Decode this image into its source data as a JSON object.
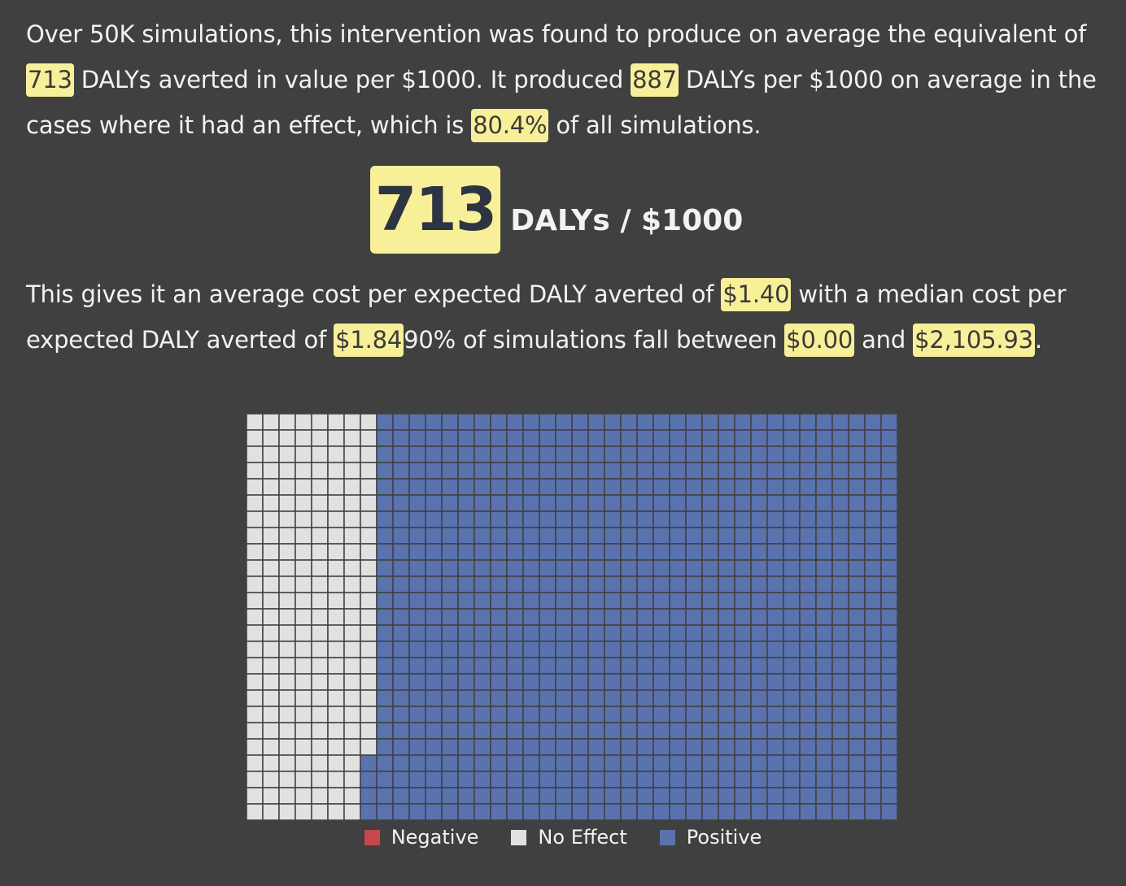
{
  "summary": {
    "s1": "Over 50K simulations, this intervention was found to produce on average the equivalent of ",
    "avg_dalys": "713",
    "s2": " DALYs averted in value per $1000. It produced ",
    "effect_dalys": "887",
    "s3": " DALYs per $1000 on average in the cases where it had an effect, which is ",
    "effect_pct": "80.4%",
    "s4": " of all simulations."
  },
  "headline": {
    "value": "713",
    "unit": "DALYs / $1000"
  },
  "cost": {
    "s1": "This gives it an average cost per expected DALY averted of ",
    "avg_cost": "$1.40",
    "s2": " with a median cost per expected DALY averted of ",
    "median_cost": "$1.84",
    "s3": "90% of simulations fall between ",
    "low": "$0.00",
    "s4": " and ",
    "high": "$2,105.93",
    "s5": "."
  },
  "colors": {
    "negative": "#c7474d",
    "no_effect": "#e1e1e1",
    "positive": "#5a72ae",
    "partial": "#b9d2ea",
    "highlight": "#f8f099"
  },
  "chart_data": {
    "type": "waffle",
    "columns": 40,
    "rows": 25,
    "total_cells": 1000,
    "categories": [
      "Negative",
      "No Effect",
      "Positive"
    ],
    "values": [
      0,
      19.6,
      80.4
    ],
    "legend": [
      {
        "label": "Negative",
        "key": "negative"
      },
      {
        "label": "No Effect",
        "key": "no_effect"
      },
      {
        "label": "Positive",
        "key": "positive"
      }
    ]
  }
}
